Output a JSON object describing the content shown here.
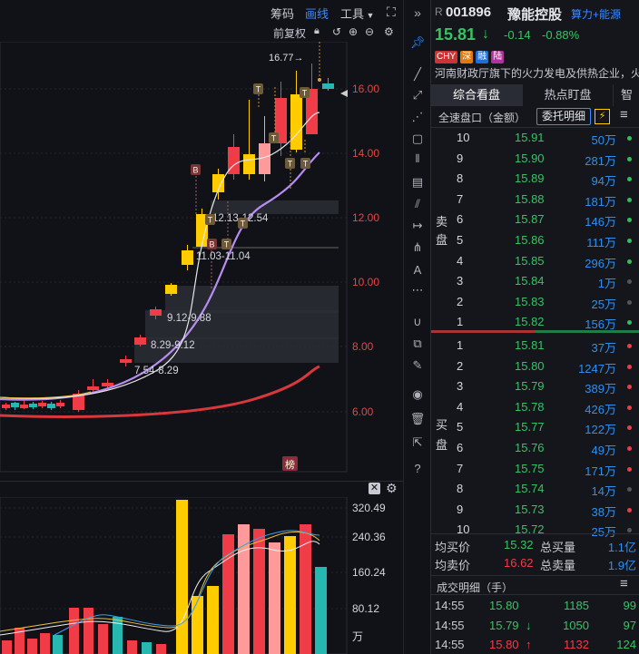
{
  "toolbar": {
    "chips": "筹码",
    "line": "画线",
    "tools": "工具",
    "adjust": "前复权",
    "collapse_icon": "»"
  },
  "main_chart": {
    "price_axis": [
      "16.00",
      "14.00",
      "12.00",
      "10.00",
      "8.00",
      "6.00"
    ],
    "high_label": "16.77→",
    "gaps": [
      "12.13-12.54",
      "11.03-11.04",
      "9.12-9.88",
      "8.29-9.12",
      "7.54-8.29"
    ],
    "markers": [
      "T",
      "T",
      "T",
      "T",
      "T",
      "T",
      "B",
      "B",
      "T",
      "T"
    ],
    "badge": "榜"
  },
  "volume_chart": {
    "axis": [
      "320.49",
      "240.36",
      "160.24",
      "80.12",
      "万"
    ]
  },
  "stock": {
    "r_tag": "R",
    "code": "001896",
    "name": "豫能控股",
    "concept": "算力+能源",
    "price": "15.81",
    "arrow": "↓",
    "change": "-0.14",
    "pct": "-0.88%",
    "tags": [
      "CHY",
      "深",
      "融",
      "陆"
    ],
    "desc": "河南财政厅旗下的火力发电及供热企业，火"
  },
  "tabs": [
    "综合看盘",
    "热点盯盘",
    "智"
  ],
  "order_bar": {
    "mode": "全速盘口（金额）",
    "button": "委托明细"
  },
  "sell_label": [
    "卖",
    "盘"
  ],
  "buy_label": [
    "买",
    "盘"
  ],
  "sell": [
    {
      "lvl": "10",
      "price": "15.91",
      "vol": "50万"
    },
    {
      "lvl": "9",
      "price": "15.90",
      "vol": "281万"
    },
    {
      "lvl": "8",
      "price": "15.89",
      "vol": "94万"
    },
    {
      "lvl": "7",
      "price": "15.88",
      "vol": "181万"
    },
    {
      "lvl": "6",
      "price": "15.87",
      "vol": "146万"
    },
    {
      "lvl": "5",
      "price": "15.86",
      "vol": "111万"
    },
    {
      "lvl": "4",
      "price": "15.85",
      "vol": "296万"
    },
    {
      "lvl": "3",
      "price": "15.84",
      "vol": "1万"
    },
    {
      "lvl": "2",
      "price": "15.83",
      "vol": "25万"
    },
    {
      "lvl": "1",
      "price": "15.82",
      "vol": "156万"
    }
  ],
  "buy": [
    {
      "lvl": "1",
      "price": "15.81",
      "vol": "37万"
    },
    {
      "lvl": "2",
      "price": "15.80",
      "vol": "1247万"
    },
    {
      "lvl": "3",
      "price": "15.79",
      "vol": "389万"
    },
    {
      "lvl": "4",
      "price": "15.78",
      "vol": "426万"
    },
    {
      "lvl": "5",
      "price": "15.77",
      "vol": "122万"
    },
    {
      "lvl": "6",
      "price": "15.76",
      "vol": "49万"
    },
    {
      "lvl": "7",
      "price": "15.75",
      "vol": "171万"
    },
    {
      "lvl": "8",
      "price": "15.74",
      "vol": "14万"
    },
    {
      "lvl": "9",
      "price": "15.73",
      "vol": "38万"
    },
    {
      "lvl": "10",
      "price": "15.72",
      "vol": "25万"
    }
  ],
  "averages": {
    "buy_avg_label": "均买价",
    "buy_avg": "15.32",
    "buy_total_label": "总买量",
    "buy_total": "1.1亿",
    "sell_avg_label": "均卖价",
    "sell_avg": "16.62",
    "sell_total_label": "总卖量",
    "sell_total": "1.9亿"
  },
  "trades_title": "成交明细（手）",
  "trades": [
    {
      "time": "14:55",
      "price": "15.80",
      "arrow": "",
      "vol": "1185",
      "n": "99"
    },
    {
      "time": "14:55",
      "price": "15.79",
      "arrow": "↓",
      "vol": "1050",
      "n": "97"
    },
    {
      "time": "14:55",
      "price": "15.80",
      "arrow": "↑",
      "vol": "1132",
      "n": "124"
    }
  ],
  "colors": {
    "up": "#f03c46",
    "down": "#26b8b0",
    "yellow": "#ffcc00",
    "pink": "#ff9a9a",
    "green_text": "#39c264",
    "blue_text": "#2f8ff0",
    "axis_red": "#e54545"
  }
}
